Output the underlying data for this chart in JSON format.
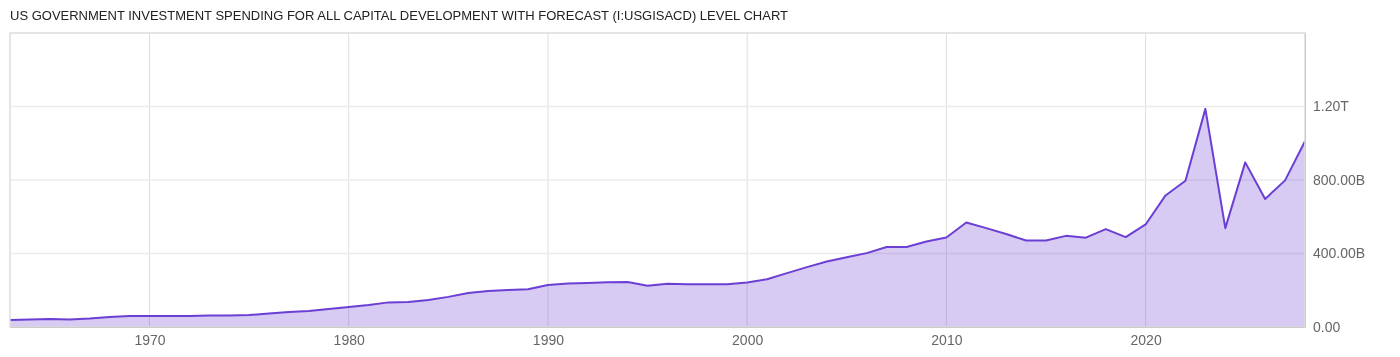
{
  "chart_data": {
    "type": "area",
    "title": "US GOVERNMENT INVESTMENT SPENDING FOR ALL CAPITAL DEVELOPMENT WITH FORECAST (I:USGISACD) LEVEL CHART",
    "x": [
      1963,
      1964,
      1965,
      1966,
      1967,
      1968,
      1969,
      1970,
      1971,
      1972,
      1973,
      1974,
      1975,
      1976,
      1977,
      1978,
      1979,
      1980,
      1981,
      1982,
      1983,
      1984,
      1985,
      1986,
      1987,
      1988,
      1989,
      1990,
      1991,
      1992,
      1993,
      1994,
      1995,
      1996,
      1997,
      1998,
      1999,
      2000,
      2001,
      2002,
      2003,
      2004,
      2005,
      2006,
      2007,
      2008,
      2009,
      2010,
      2011,
      2012,
      2013,
      2014,
      2015,
      2016,
      2017,
      2018,
      2019,
      2020,
      2021,
      2022,
      2023,
      2024,
      2025,
      2026,
      2027,
      2028
    ],
    "series": [
      {
        "color": "#6b3fd4",
        "values": [
          38000000000.0,
          41000000000.0,
          44000000000.0,
          41000000000.0,
          46000000000.0,
          55000000000.0,
          60000000000.0,
          60000000000.0,
          60000000000.0,
          60000000000.0,
          63000000000.0,
          63000000000.0,
          65000000000.0,
          74000000000.0,
          82000000000.0,
          87000000000.0,
          98000000000.0,
          109000000000.0,
          120000000000.0,
          134000000000.0,
          136000000000.0,
          147000000000.0,
          164000000000.0,
          185000000000.0,
          196000000000.0,
          202000000000.0,
          205000000000.0,
          229000000000.0,
          237000000000.0,
          240000000000.0,
          243000000000.0,
          245000000000.0,
          225000000000.0,
          236000000000.0,
          233000000000.0,
          233000000000.0,
          233000000000.0,
          242000000000.0,
          260000000000.0,
          293000000000.0,
          326000000000.0,
          356000000000.0,
          380000000000.0,
          402000000000.0,
          435000000000.0,
          435000000000.0,
          465000000000.0,
          487000000000.0,
          569000000000.0,
          538000000000.0,
          506000000000.0,
          471000000000.0,
          471000000000.0,
          496000000000.0,
          486000000000.0,
          533000000000.0,
          489000000000.0,
          558000000000.0,
          716000000000.0,
          796000000000.0,
          1187000000000.0,
          538000000000.0,
          896000000000.0,
          697000000000.0,
          798000000000.0,
          1011000000000.0
        ]
      }
    ],
    "xlim": [
      1963,
      2028
    ],
    "xticks": [
      1970,
      1980,
      1990,
      2000,
      2010,
      2020
    ],
    "ylim": [
      0,
      1600000000000.0
    ],
    "yticks": [
      {
        "value": 0,
        "label": "0.00"
      },
      {
        "value": 400000000000.0,
        "label": "400.00B"
      },
      {
        "value": 800000000000.0,
        "label": "800.00B"
      },
      {
        "value": 1200000000000.0,
        "label": "1.20T"
      }
    ],
    "grid": true,
    "marker": "none",
    "line_style": "solid"
  }
}
